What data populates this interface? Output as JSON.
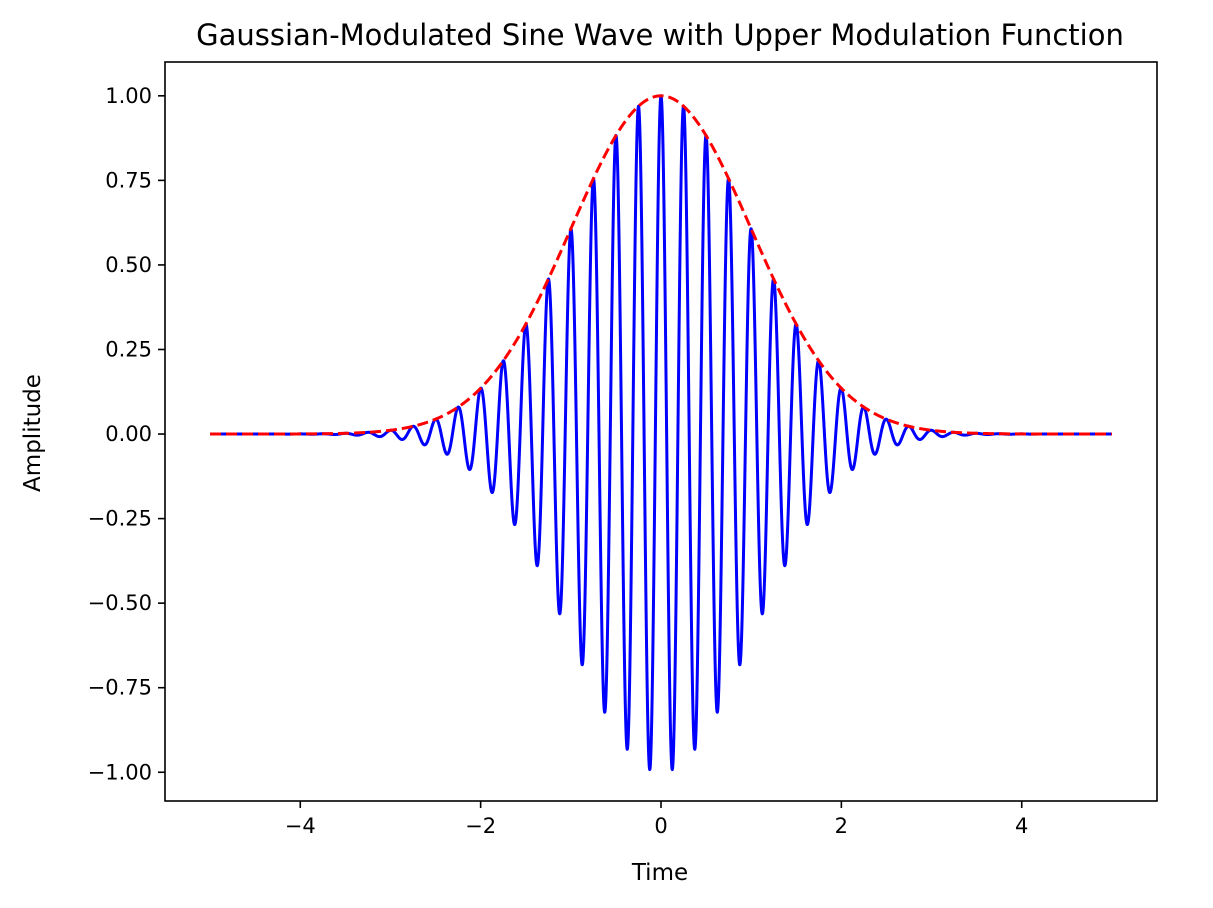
{
  "chart_data": {
    "type": "line",
    "title": "Gaussian-Modulated Sine Wave with Upper Modulation Function",
    "xlabel": "Time",
    "ylabel": "Amplitude",
    "xlim": [
      -5.5,
      5.5
    ],
    "ylim": [
      -1.085,
      1.1
    ],
    "grid": false,
    "legend": "none",
    "xticks": [
      -4,
      -2,
      0,
      2,
      4
    ],
    "xtick_labels": [
      "−4",
      "−2",
      "0",
      "2",
      "4"
    ],
    "yticks": [
      1.0,
      0.75,
      0.5,
      0.25,
      0.0,
      -0.25,
      -0.5,
      -0.75,
      -1.0
    ],
    "ytick_labels": [
      "1.00",
      "0.75",
      "0.50",
      "0.25",
      "0.00",
      "−0.25",
      "−0.50",
      "−0.75",
      "−1.00"
    ],
    "series": [
      {
        "function": "exp(-t^2/2) * cos(2*pi*4*t)",
        "x_range": [
          -5,
          5
        ],
        "peak_amplitude": 1.0,
        "carrier_frequency": 4,
        "gaussian_sigma": 1,
        "color": "#0000ff",
        "style": "solid"
      },
      {
        "function": "exp(-t^2/2)",
        "x_range": [
          -5,
          5
        ],
        "peak": 1.0,
        "color": "#ff0000",
        "style": "dashed"
      }
    ]
  }
}
